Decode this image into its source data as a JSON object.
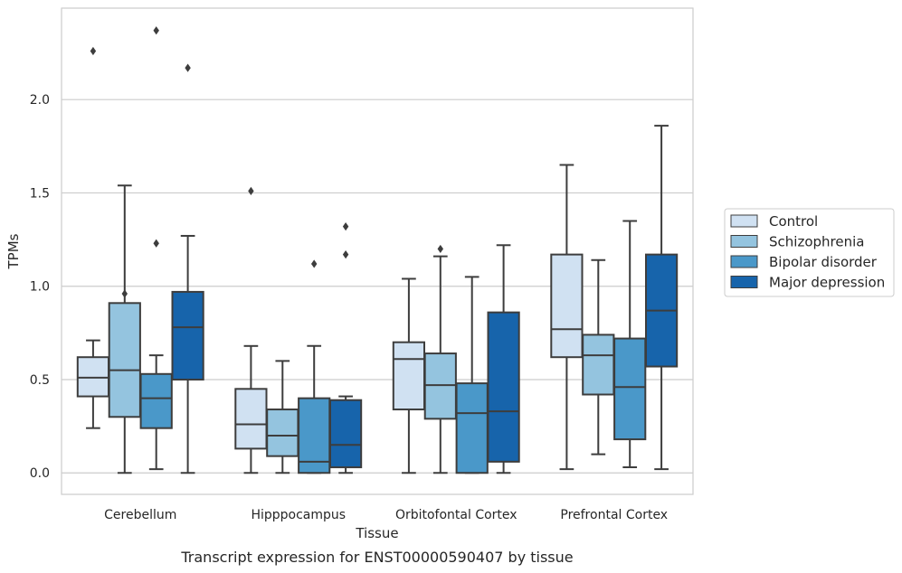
{
  "caption": "Transcript expression for ENST00000590407 by tissue",
  "chart_data": {
    "type": "box",
    "xlabel": "Tissue",
    "ylabel": "TPMs",
    "ylim": [
      -0.115,
      2.49
    ],
    "yticks": [
      0.0,
      0.5,
      1.0,
      1.5,
      2.0
    ],
    "ytick_labels": [
      "0.0",
      "0.5",
      "1.0",
      "1.5",
      "2.0"
    ],
    "grid": "horizontal",
    "legend_position": "right",
    "categories": [
      "Cerebellum",
      "Hipppocampus",
      "Orbitofontal Cortex",
      "Prefrontal Cortex"
    ],
    "series": [
      {
        "name": "Control",
        "color": "#d0e1f2",
        "boxes": [
          {
            "whislo": 0.24,
            "q1": 0.41,
            "med": 0.51,
            "q3": 0.62,
            "whishi": 0.71,
            "fliers": [
              2.26
            ]
          },
          {
            "whislo": 0.0,
            "q1": 0.13,
            "med": 0.26,
            "q3": 0.45,
            "whishi": 0.68,
            "fliers": [
              1.51
            ]
          },
          {
            "whislo": 0.0,
            "q1": 0.34,
            "med": 0.61,
            "q3": 0.7,
            "whishi": 1.04,
            "fliers": []
          },
          {
            "whislo": 0.02,
            "q1": 0.62,
            "med": 0.77,
            "q3": 1.17,
            "whishi": 1.65,
            "fliers": []
          }
        ]
      },
      {
        "name": "Schizophrenia",
        "color": "#94c4df",
        "boxes": [
          {
            "whislo": 0.0,
            "q1": 0.3,
            "med": 0.55,
            "q3": 0.91,
            "whishi": 1.54,
            "fliers": [
              0.96
            ]
          },
          {
            "whislo": 0.0,
            "q1": 0.09,
            "med": 0.2,
            "q3": 0.34,
            "whishi": 0.6,
            "fliers": []
          },
          {
            "whislo": 0.0,
            "q1": 0.29,
            "med": 0.47,
            "q3": 0.64,
            "whishi": 1.16,
            "fliers": [
              1.2
            ]
          },
          {
            "whislo": 0.1,
            "q1": 0.42,
            "med": 0.63,
            "q3": 0.74,
            "whishi": 1.14,
            "fliers": []
          }
        ]
      },
      {
        "name": "Bipolar disorder",
        "color": "#4a98c9",
        "boxes": [
          {
            "whislo": 0.02,
            "q1": 0.24,
            "med": 0.4,
            "q3": 0.53,
            "whishi": 0.63,
            "fliers": [
              1.23,
              2.37
            ]
          },
          {
            "whislo": 0.0,
            "q1": 0.0,
            "med": 0.06,
            "q3": 0.4,
            "whishi": 0.68,
            "fliers": [
              1.12
            ]
          },
          {
            "whislo": 0.0,
            "q1": 0.0,
            "med": 0.32,
            "q3": 0.48,
            "whishi": 1.05,
            "fliers": []
          },
          {
            "whislo": 0.03,
            "q1": 0.18,
            "med": 0.46,
            "q3": 0.72,
            "whishi": 1.35,
            "fliers": []
          }
        ]
      },
      {
        "name": "Major depression",
        "color": "#1764ab",
        "boxes": [
          {
            "whislo": 0.0,
            "q1": 0.5,
            "med": 0.78,
            "q3": 0.97,
            "whishi": 1.27,
            "fliers": [
              2.17
            ]
          },
          {
            "whislo": 0.0,
            "q1": 0.03,
            "med": 0.15,
            "q3": 0.39,
            "whishi": 0.41,
            "fliers": [
              1.17,
              1.32
            ]
          },
          {
            "whislo": 0.0,
            "q1": 0.06,
            "med": 0.33,
            "q3": 0.86,
            "whishi": 1.22,
            "fliers": []
          },
          {
            "whislo": 0.02,
            "q1": 0.57,
            "med": 0.87,
            "q3": 1.17,
            "whishi": 1.86,
            "fliers": []
          }
        ]
      }
    ]
  }
}
